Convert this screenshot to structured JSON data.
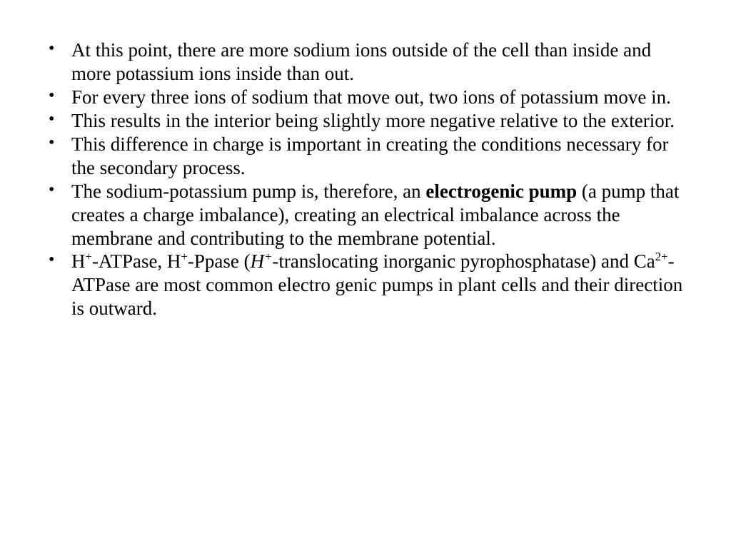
{
  "slide": {
    "background_color": "#ffffff",
    "text_color": "#000000",
    "font_family": "Times New Roman",
    "font_size_pt": 20,
    "bullets": [
      {
        "segments": [
          {
            "text": "At this point, there are more sodium ions outside of the cell than inside and more potassium ions inside than out."
          }
        ]
      },
      {
        "segments": [
          {
            "text": "For every three ions of sodium that move out, two ions of potassium move in."
          }
        ]
      },
      {
        "segments": [
          {
            "text": "This results in the interior being slightly more negative relative to the exterior."
          }
        ]
      },
      {
        "segments": [
          {
            "text": "This difference in charge is important in creating the conditions necessary for the secondary process."
          }
        ]
      },
      {
        "segments": [
          {
            "text": "The sodium-potassium pump is, therefore, an "
          },
          {
            "text": "electrogenic pump",
            "bold": true
          },
          {
            "text": " (a pump that creates a charge imbalance), creating an electrical imbalance across the membrane and contributing to the membrane potential."
          }
        ]
      },
      {
        "segments": [
          {
            "text": "H"
          },
          {
            "text": "+",
            "sup": true
          },
          {
            "text": "-ATPase, H"
          },
          {
            "text": "+",
            "sup": true
          },
          {
            "text": "-Ppase ("
          },
          {
            "text": "H",
            "italic": true
          },
          {
            "text": "+",
            "italic": true,
            "sup": true
          },
          {
            "text": "-translocating inorganic pyrophosphatase) and Ca"
          },
          {
            "text": "2+",
            "sup": true
          },
          {
            "text": "-ATPase are most common electro genic pumps in plant cells and their direction is outward."
          }
        ]
      }
    ]
  }
}
